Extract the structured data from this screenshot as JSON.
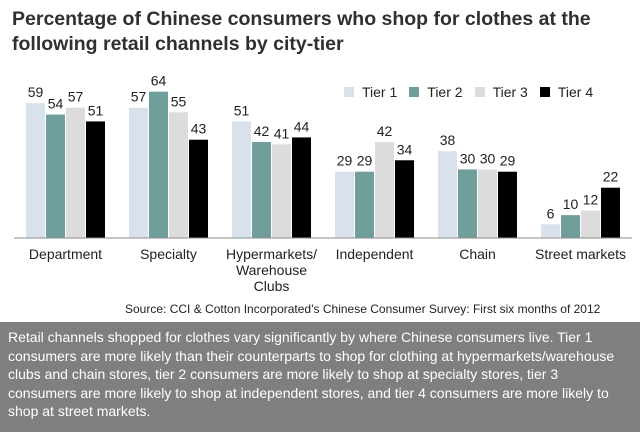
{
  "title": "Percentage of Chinese consumers who shop for clothes at the following retail channels by city-tier",
  "source": "Source: CCI & Cotton Incorporated’s Chinese Consumer Survey: First six months of 2012",
  "caption": "Retail channels shopped for clothes vary significantly by where Chinese consumers live. Tier 1 consumers are more likely than their counterparts to shop for clothing at hypermarkets/warehouse clubs and chain stores, tier 2 consumers are more likely to shop at specialty stores, tier 3 consumers are more likely to shop at independent stores, and tier 4 consumers are more likely to shop at street markets.",
  "chart_data": {
    "type": "bar",
    "title": "Percentage of Chinese consumers who shop for clothes at the following retail channels by city-tier",
    "categories": [
      "Department",
      "Specialty",
      "Hypermarkets/ Warehouse Clubs",
      "Independent",
      "Chain",
      "Street markets"
    ],
    "category_lines": [
      [
        "Department"
      ],
      [
        "Specialty"
      ],
      [
        "Hypermarkets/",
        "Warehouse",
        "Clubs"
      ],
      [
        "Independent"
      ],
      [
        "Chain"
      ],
      [
        "Street markets"
      ]
    ],
    "series": [
      {
        "name": "Tier 1",
        "color": "#d9e2ec",
        "values": [
          59,
          57,
          51,
          29,
          38,
          6
        ]
      },
      {
        "name": "Tier 2",
        "color": "#6f9e9b",
        "values": [
          54,
          64,
          42,
          29,
          30,
          10
        ]
      },
      {
        "name": "Tier 3",
        "color": "#dcdcdc",
        "values": [
          57,
          55,
          41,
          42,
          30,
          12
        ]
      },
      {
        "name": "Tier 4",
        "color": "#000000",
        "values": [
          51,
          43,
          44,
          34,
          29,
          22
        ]
      }
    ],
    "ylim": [
      0,
      70
    ],
    "grid": false,
    "legend_position": "top-right",
    "data_labels": true,
    "xlabel": "",
    "ylabel": ""
  }
}
